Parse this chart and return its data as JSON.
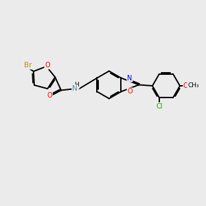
{
  "bg_color": "#ebebeb",
  "bond_color": "#000000",
  "bw": 1.4,
  "dbo": 0.055,
  "atom_colors": {
    "Br": "#cc8800",
    "O": "#ff0000",
    "N": "#0000ff",
    "NH": "#5588aa",
    "Cl": "#00aa00",
    "C": "#000000"
  },
  "figsize": [
    3.0,
    3.0
  ],
  "dpi": 100
}
